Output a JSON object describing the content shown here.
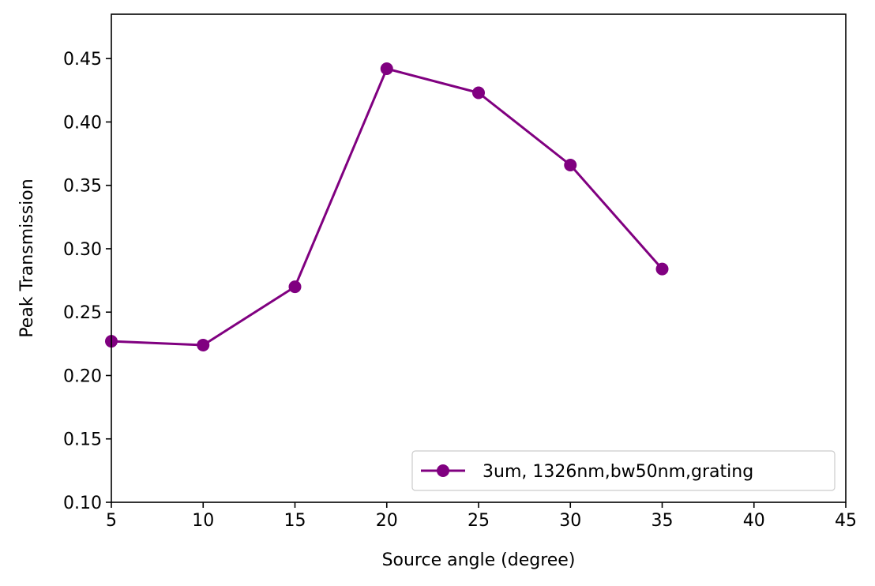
{
  "chart_data": {
    "type": "line",
    "title": "",
    "xlabel": "Source angle (degree)",
    "ylabel": "Peak Transmission",
    "xlim": [
      5,
      45
    ],
    "ylim": [
      0.1,
      0.485
    ],
    "xticks": [
      5,
      10,
      15,
      20,
      25,
      30,
      35,
      40,
      45
    ],
    "xtick_labels": [
      "5",
      "10",
      "15",
      "20",
      "25",
      "30",
      "35",
      "40",
      "45"
    ],
    "yticks": [
      0.1,
      0.15,
      0.2,
      0.25,
      0.3,
      0.35,
      0.4,
      0.45
    ],
    "ytick_labels": [
      "0.10",
      "0.15",
      "0.20",
      "0.25",
      "0.30",
      "0.35",
      "0.40",
      "0.45"
    ],
    "grid": false,
    "legend_position": "bottom-right",
    "series": [
      {
        "name": "3um, 1326nm,bw50nm,grating",
        "color": "#800080",
        "marker": "circle",
        "x": [
          5,
          10,
          15,
          20,
          25,
          30,
          35
        ],
        "y": [
          0.227,
          0.224,
          0.27,
          0.442,
          0.423,
          0.366,
          0.284
        ]
      }
    ]
  }
}
